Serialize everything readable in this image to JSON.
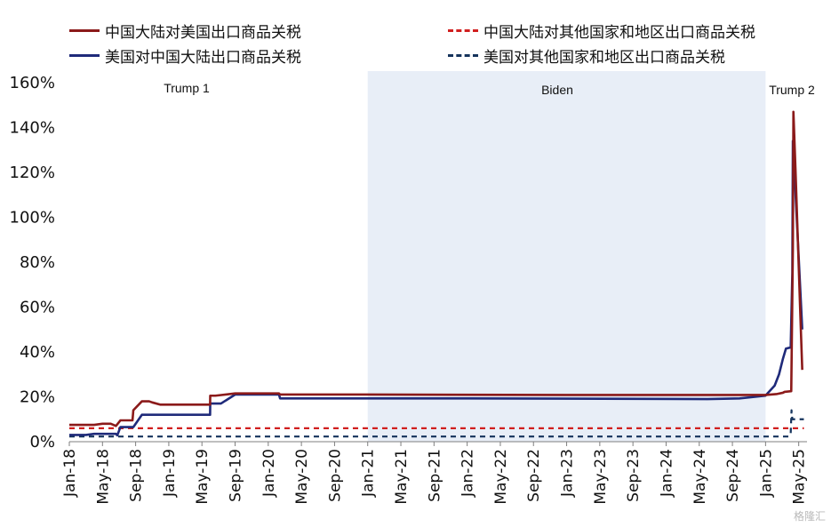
{
  "chart_data": {
    "type": "line",
    "title": "",
    "xlabel": "",
    "ylabel": "",
    "ylim": [
      0,
      160
    ],
    "yticks": [
      "0%",
      "20%",
      "40%",
      "60%",
      "80%",
      "100%",
      "120%",
      "140%",
      "160%"
    ],
    "xlim": [
      "2018-01",
      "2025-06"
    ],
    "xticks": [
      "Jan-18",
      "May-18",
      "Sep-18",
      "Jan-19",
      "May-19",
      "Sep-19",
      "Jan-20",
      "May-20",
      "Sep-20",
      "Jan-21",
      "May-21",
      "Sep-21",
      "Jan-22",
      "May-22",
      "Sep-22",
      "Jan-23",
      "May-23",
      "Sep-23",
      "Jan-24",
      "May-24",
      "Sep-24",
      "Jan-25",
      "May-25"
    ],
    "grid": false,
    "legend_position": "top",
    "periods": [
      {
        "label": "Trump 1",
        "start": "2018-01",
        "end": "2021-01",
        "shaded": false
      },
      {
        "label": "Biden",
        "start": "2021-01",
        "end": "2025-01",
        "shaded": true,
        "color": "#e8eef7"
      },
      {
        "label": "Trump 2",
        "start": "2025-01",
        "end": "2025-06",
        "shaded": false
      }
    ],
    "series": [
      {
        "name": "中国大陆对美国出口商品关税",
        "color": "#8b1a1a",
        "dash": "solid",
        "points": [
          [
            "2018-01-01",
            7.5
          ],
          [
            "2018-04-01",
            7.5
          ],
          [
            "2018-05-01",
            8.0
          ],
          [
            "2018-06-01",
            8.0
          ],
          [
            "2018-06-20",
            7.0
          ],
          [
            "2018-07-06",
            9.5
          ],
          [
            "2018-08-20",
            9.5
          ],
          [
            "2018-08-23",
            14.0
          ],
          [
            "2018-09-24",
            18.0
          ],
          [
            "2018-10-20",
            18.0
          ],
          [
            "2018-11-01",
            17.5
          ],
          [
            "2018-12-01",
            16.5
          ],
          [
            "2019-05-31",
            16.5
          ],
          [
            "2019-06-01",
            20.5
          ],
          [
            "2019-06-20",
            20.5
          ],
          [
            "2019-09-01",
            21.5
          ],
          [
            "2020-02-10",
            21.5
          ],
          [
            "2020-02-14",
            21.0
          ],
          [
            "2021-01-01",
            21.0
          ],
          [
            "2023-06-01",
            20.8
          ],
          [
            "2024-12-31",
            20.8
          ],
          [
            "2025-02-10",
            21.2
          ],
          [
            "2025-03-04",
            21.8
          ],
          [
            "2025-03-10",
            22.2
          ],
          [
            "2025-04-04",
            22.5
          ],
          [
            "2025-04-10",
            86.0
          ],
          [
            "2025-04-12",
            147.0
          ],
          [
            "2025-04-20",
            120.0
          ],
          [
            "2025-05-06",
            60.0
          ],
          [
            "2025-05-14",
            32.0
          ]
        ]
      },
      {
        "name": "美国对中国大陆出口商品关税",
        "color": "#1f2a7a",
        "dash": "solid",
        "points": [
          [
            "2018-01-01",
            3.0
          ],
          [
            "2018-03-01",
            3.0
          ],
          [
            "2018-04-01",
            3.5
          ],
          [
            "2018-06-20",
            3.5
          ],
          [
            "2018-06-25",
            2.8
          ],
          [
            "2018-07-06",
            6.5
          ],
          [
            "2018-08-23",
            6.5
          ],
          [
            "2018-09-24",
            12.0
          ],
          [
            "2019-05-31",
            12.0
          ],
          [
            "2019-06-01",
            17.0
          ],
          [
            "2019-07-10",
            17.0
          ],
          [
            "2019-09-01",
            21.0
          ],
          [
            "2020-02-10",
            21.0
          ],
          [
            "2020-02-14",
            19.3
          ],
          [
            "2022-01-01",
            19.3
          ],
          [
            "2024-06-01",
            19.0
          ],
          [
            "2024-09-27",
            19.3
          ],
          [
            "2024-12-31",
            20.5
          ],
          [
            "2025-02-04",
            25.0
          ],
          [
            "2025-02-20",
            30.0
          ],
          [
            "2025-03-04",
            37.0
          ],
          [
            "2025-03-15",
            41.5
          ],
          [
            "2025-04-02",
            42.0
          ],
          [
            "2025-04-08",
            75.0
          ],
          [
            "2025-04-10",
            134.0
          ],
          [
            "2025-04-20",
            110.0
          ],
          [
            "2025-05-14",
            50.0
          ]
        ]
      },
      {
        "name": "中国大陆对其他国家和地区出口商品关税",
        "color": "#d11f1f",
        "dash": "dashed",
        "points": [
          [
            "2018-01-01",
            6.0
          ],
          [
            "2025-05-20",
            6.0
          ]
        ]
      },
      {
        "name": "美国对其他国家和地区出口商品关税",
        "color": "#15335c",
        "dash": "dashed",
        "points": [
          [
            "2018-01-01",
            2.3
          ],
          [
            "2025-03-25",
            2.3
          ],
          [
            "2025-04-02",
            3.5
          ],
          [
            "2025-04-05",
            14.0
          ],
          [
            "2025-04-08",
            10.0
          ],
          [
            "2025-04-10",
            10.0
          ],
          [
            "2025-05-20",
            10.0
          ]
        ]
      }
    ]
  },
  "watermark": "格隆汇"
}
